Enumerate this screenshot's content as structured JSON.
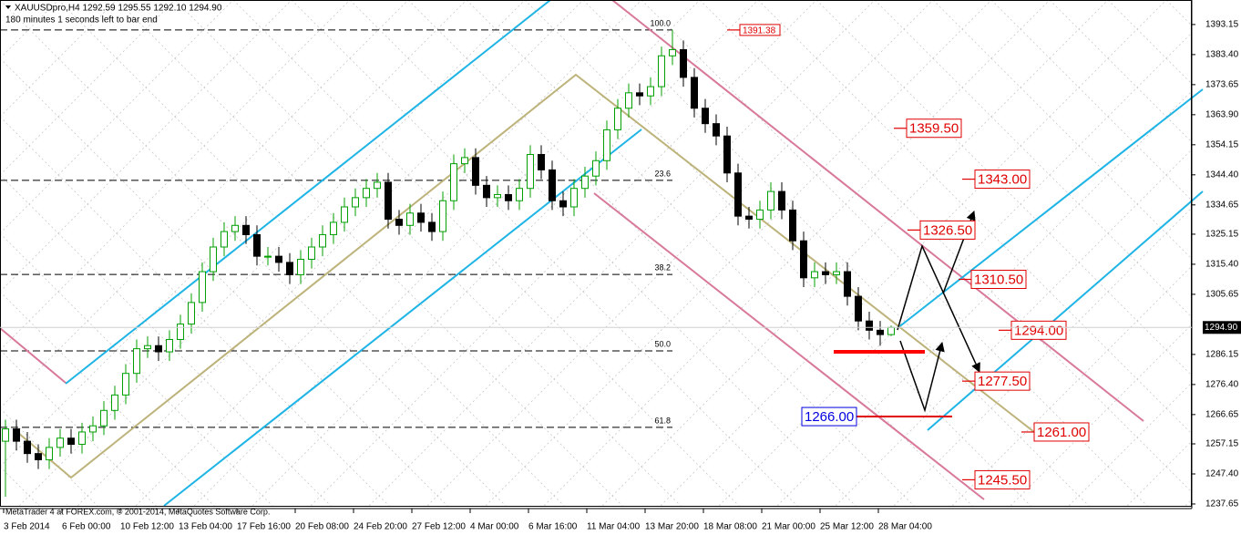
{
  "chart_data": {
    "type": "candlestick",
    "title": "XAUUSDpro,H4  1292.59 1295.55 1292.10 1294.90",
    "subtitle": "180 minutes 1 seconds left to bar end",
    "footer": "MetaTrader 4 at FOREX.com, © 2001-2014, MetaQuotes Software Corp.",
    "x_labels": [
      "3 Feb 2014",
      "6 Feb 00:00",
      "10 Feb 12:00",
      "13 Feb 04:00",
      "17 Feb 16:00",
      "20 Feb 08:00",
      "24 Feb 20:00",
      "27 Feb 12:00",
      "4 Mar 00:00",
      "6 Mar 16:00",
      "11 Mar 04:00",
      "13 Mar 20:00",
      "18 Mar 08:00",
      "21 Mar 00:00",
      "25 Mar 12:00",
      "28 Mar 04:00"
    ],
    "open": [
      1258,
      1262,
      1258,
      1254,
      1252,
      1256,
      1259,
      1257,
      1261,
      1263,
      1268,
      1273,
      1280,
      1288,
      1289,
      1287,
      1291,
      1296,
      1303,
      1313,
      1321,
      1326,
      1328,
      1325,
      1318,
      1318,
      1316,
      1312,
      1317,
      1321,
      1325,
      1329,
      1334,
      1337,
      1340,
      1342,
      1330,
      1328,
      1332,
      1329,
      1326,
      1336,
      1348,
      1350,
      1341,
      1337,
      1338,
      1336,
      1340,
      1351,
      1346,
      1336,
      1334,
      1340,
      1344,
      1349,
      1359,
      1366,
      1371,
      1370,
      1373,
      1383,
      1385,
      1376,
      1366,
      1361,
      1357,
      1345,
      1331,
      1330,
      1333,
      1339,
      1333,
      1323,
      1311,
      1313,
      1312,
      1313,
      1305,
      1297,
      1294,
      1292.59
    ],
    "high": [
      1265,
      1265,
      1261,
      1257,
      1259,
      1262,
      1262,
      1264,
      1266,
      1271,
      1276,
      1283,
      1291,
      1292,
      1292,
      1294,
      1299,
      1306,
      1316,
      1324,
      1329,
      1331,
      1331,
      1328,
      1321,
      1321,
      1319,
      1320,
      1324,
      1328,
      1332,
      1337,
      1340,
      1343,
      1345,
      1345,
      1333,
      1335,
      1335,
      1332,
      1339,
      1351,
      1353,
      1353,
      1344,
      1341,
      1341,
      1343,
      1354,
      1354,
      1349,
      1339,
      1343,
      1347,
      1352,
      1362,
      1369,
      1374,
      1374,
      1376,
      1386,
      1391.38,
      1388,
      1379,
      1369,
      1364,
      1360,
      1348,
      1334,
      1336,
      1342,
      1342,
      1336,
      1326,
      1316,
      1316,
      1316,
      1316,
      1308,
      1300,
      1297,
      1295.55
    ],
    "low": [
      1240,
      1255,
      1251,
      1249,
      1249,
      1253,
      1254,
      1254,
      1258,
      1260,
      1265,
      1270,
      1277,
      1285,
      1284,
      1284,
      1288,
      1293,
      1300,
      1310,
      1318,
      1323,
      1322,
      1315,
      1315,
      1313,
      1309,
      1309,
      1314,
      1318,
      1322,
      1326,
      1331,
      1334,
      1337,
      1327,
      1325,
      1325,
      1326,
      1323,
      1323,
      1333,
      1345,
      1338,
      1334,
      1334,
      1333,
      1333,
      1337,
      1343,
      1333,
      1331,
      1331,
      1337,
      1341,
      1346,
      1356,
      1363,
      1367,
      1367,
      1370,
      1380,
      1373,
      1363,
      1358,
      1354,
      1342,
      1328,
      1327,
      1327,
      1330,
      1330,
      1320,
      1308,
      1308,
      1309,
      1309,
      1302,
      1294,
      1291,
      1289,
      1292.1
    ],
    "close": [
      1262,
      1258,
      1254,
      1252,
      1256,
      1259,
      1257,
      1261,
      1263,
      1268,
      1273,
      1280,
      1288,
      1289,
      1287,
      1291,
      1296,
      1303,
      1313,
      1321,
      1326,
      1328,
      1325,
      1318,
      1318,
      1316,
      1312,
      1317,
      1321,
      1325,
      1329,
      1334,
      1337,
      1340,
      1342,
      1330,
      1328,
      1332,
      1329,
      1326,
      1336,
      1348,
      1350,
      1341,
      1337,
      1338,
      1336,
      1340,
      1351,
      1346,
      1336,
      1334,
      1340,
      1344,
      1349,
      1359,
      1366,
      1371,
      1370,
      1373,
      1383,
      1385,
      1376,
      1366,
      1361,
      1357,
      1345,
      1331,
      1330,
      1333,
      1339,
      1333,
      1323,
      1311,
      1313,
      1312,
      1313,
      1305,
      1297,
      1294,
      1292.59,
      1294.9
    ],
    "up_color": "#00a000",
    "down_color": "#000000",
    "ylim": [
      1237.05,
      1401.1
    ],
    "yticks": [
      1393.15,
      {
        "value": 1383.4,
        "label": "1383.40"
      },
      1373.65,
      {
        "value": 1363.9,
        "label": "1363.90"
      },
      1354.15,
      {
        "value": 1344.4,
        "label": "1344.40"
      },
      1334.65,
      1325.15,
      {
        "value": 1315.4,
        "label": "1315.40"
      },
      1305.65,
      1286.15,
      {
        "value": 1276.4,
        "label": "1276.40"
      },
      1266.65,
      1257.15,
      {
        "value": 1247.4,
        "label": "1247.40"
      },
      1237.65
    ],
    "last_price": {
      "value": 1294.9,
      "label": "1294.90"
    },
    "fibo_levels": [
      {
        "label": "100.0",
        "price": 1391.38
      },
      {
        "label": "23.6",
        "price": 1342.6
      },
      {
        "label": "38.2",
        "price": 1312.1
      },
      {
        "label": "50.0",
        "price": 1287.3
      },
      {
        "label": "61.8",
        "price": 1262.5
      }
    ],
    "price_labels": [
      {
        "value": 1391.38,
        "label": "1391.38",
        "color": "#e00000"
      },
      {
        "value": 1359.5,
        "label": "1359.50",
        "color": "#e00000"
      },
      {
        "value": 1343,
        "label": "1343.00",
        "color": "#e00000"
      },
      {
        "value": 1326.5,
        "label": "1326.50",
        "color": "#e00000"
      },
      {
        "value": 1310.5,
        "label": "1310.50",
        "color": "#e00000"
      },
      {
        "value": 1294,
        "label": "1294.00",
        "color": "#e00000"
      },
      {
        "value": 1277.5,
        "label": "1277.50",
        "color": "#e00000"
      },
      {
        "value": 1261,
        "label": "1261.00",
        "color": "#e00000"
      },
      {
        "value": 1245.5,
        "label": "1245.50",
        "color": "#e00000"
      },
      {
        "value": 1266,
        "label": "1266.00",
        "color": "#0000e0"
      }
    ]
  }
}
